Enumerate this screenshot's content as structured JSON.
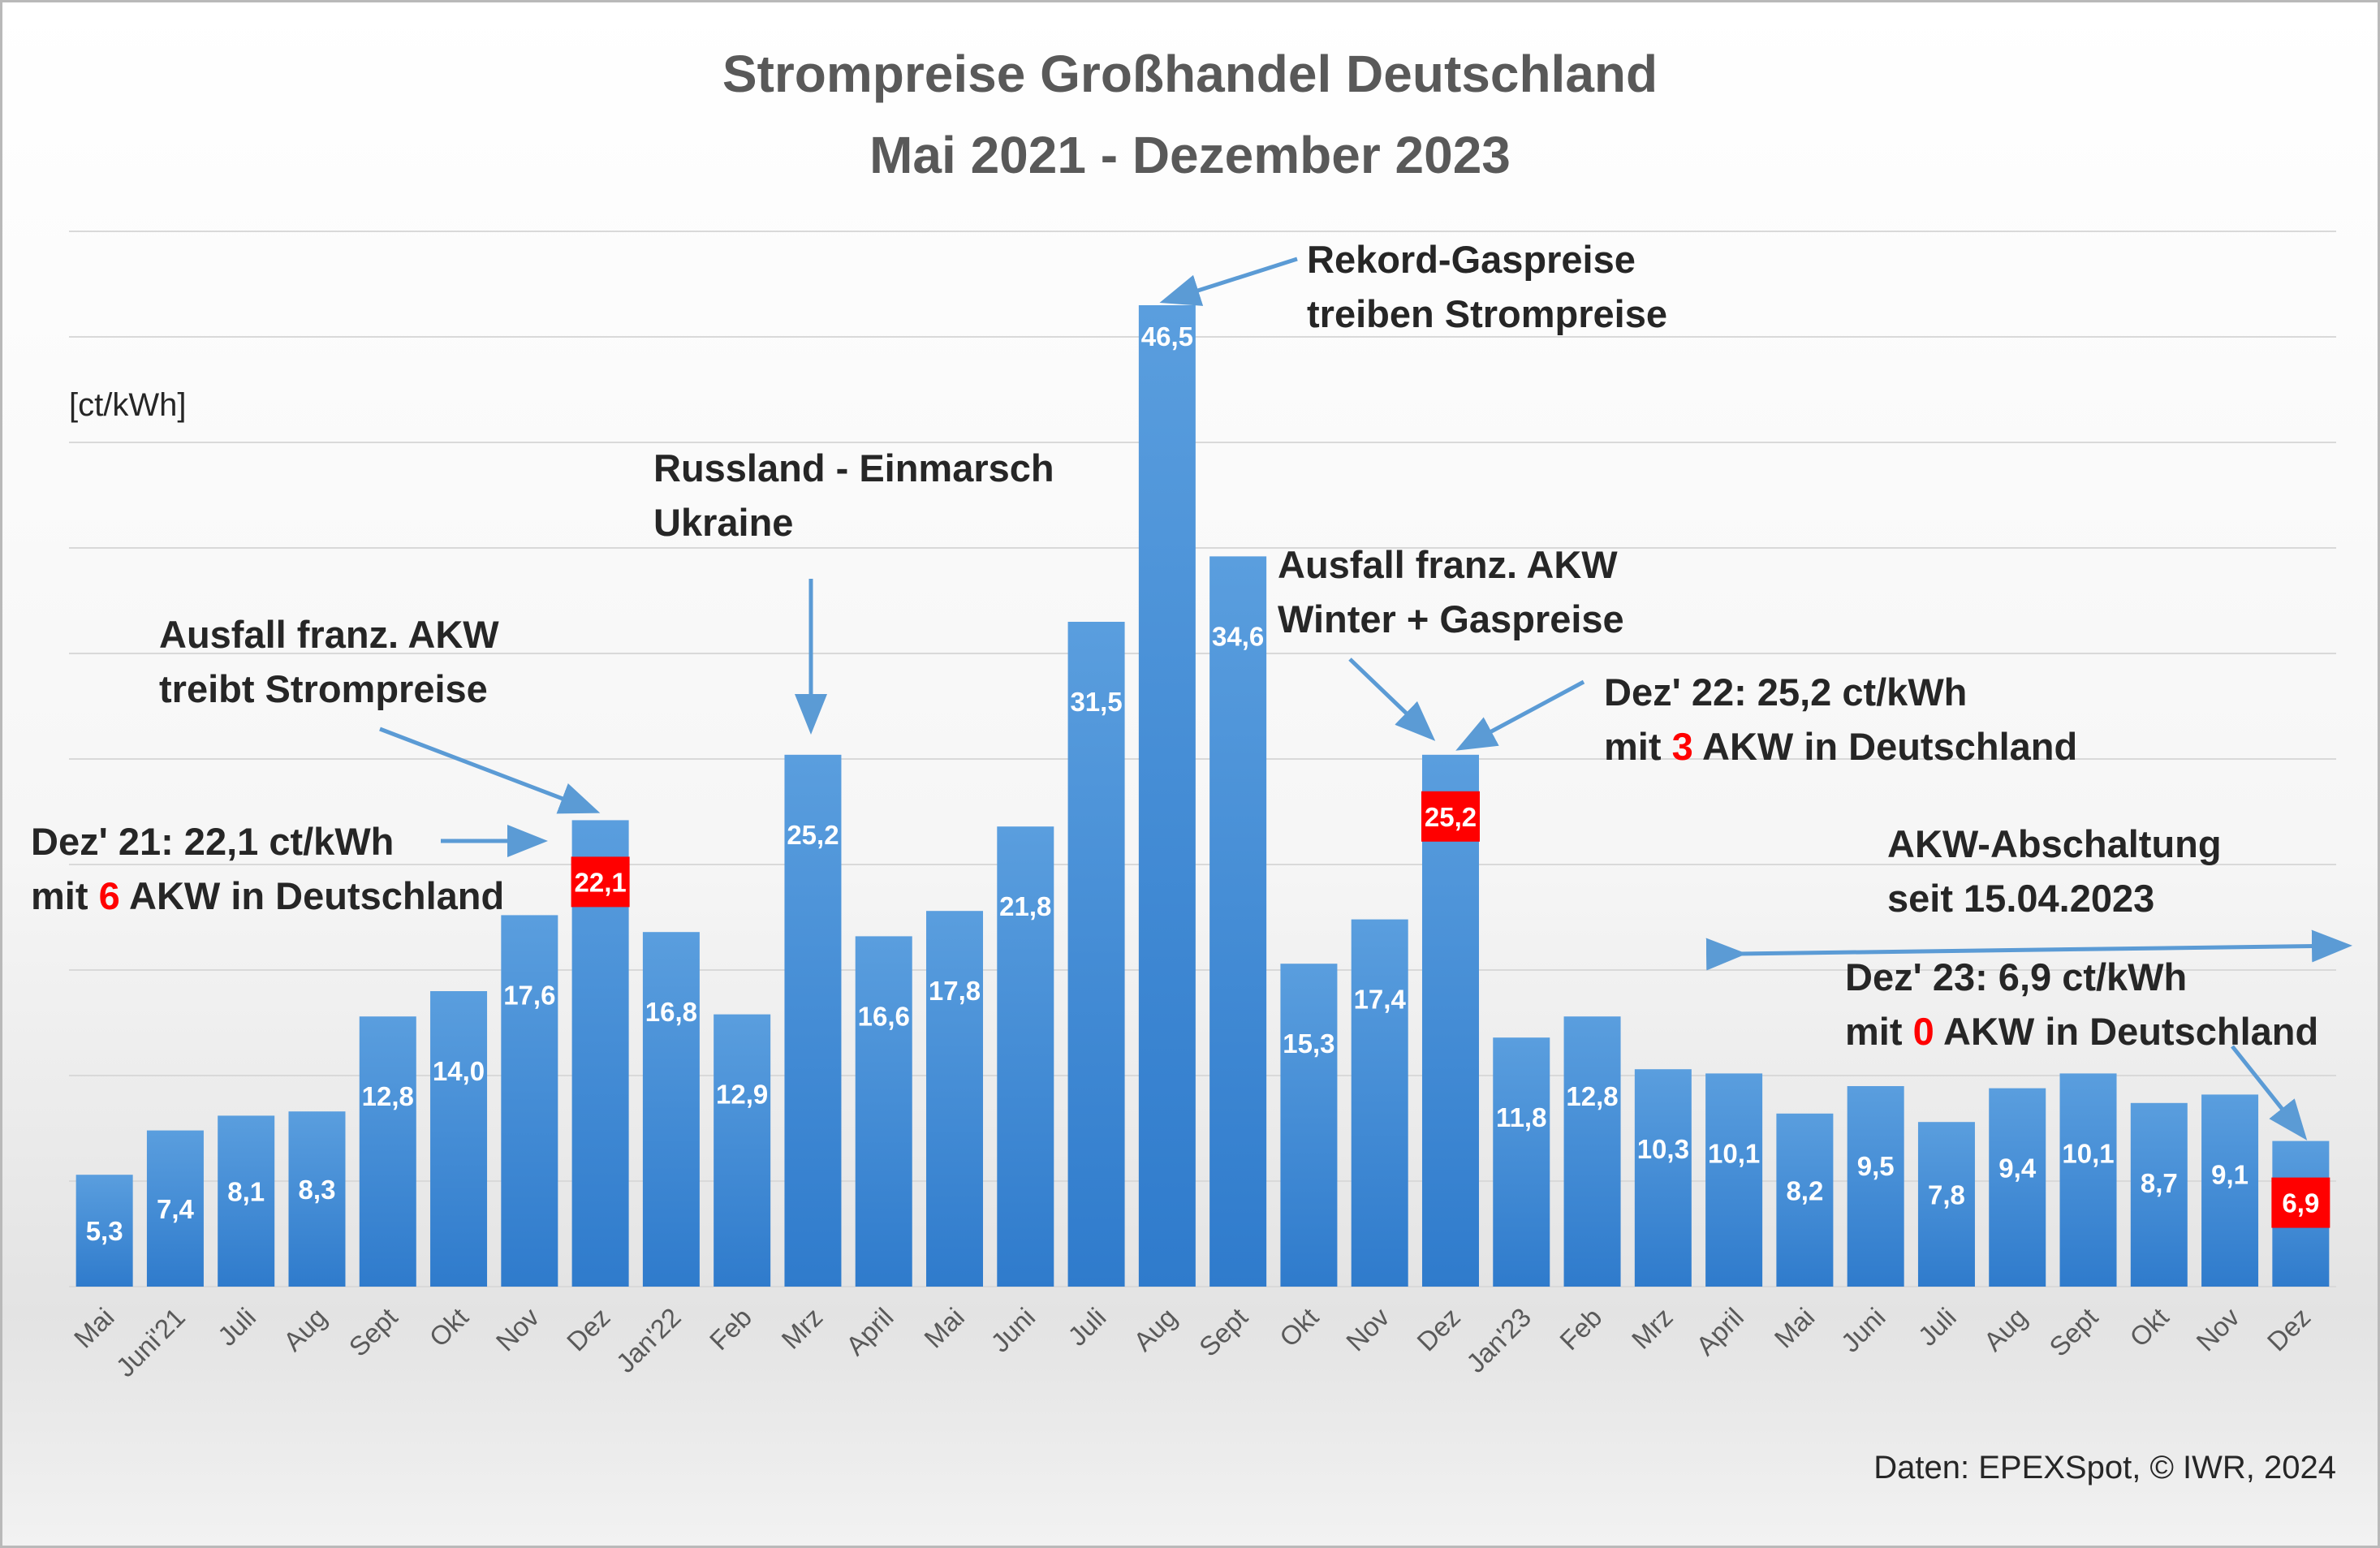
{
  "chart_data": {
    "type": "bar",
    "title": "Strompreise Großhandel Deutschland",
    "subtitle": "Mai 2021 - Dezember 2023",
    "ylabel": "[ct/kWh]",
    "ylim": [
      0,
      52
    ],
    "grid": true,
    "bar_color": "#3a87d6",
    "highlight_color": "#ff0000",
    "categories": [
      "Mai",
      "Juni'21",
      "Juli",
      "Aug",
      "Sept",
      "Okt",
      "Nov",
      "Dez",
      "Jan'22",
      "Feb",
      "Mrz",
      "April",
      "Mai",
      "Juni",
      "Juli",
      "Aug",
      "Sept",
      "Okt",
      "Nov",
      "Dez",
      "Jan'23",
      "Feb",
      "Mrz",
      "April",
      "Mai",
      "Juni",
      "Juli",
      "Aug",
      "Sept",
      "Okt",
      "Nov",
      "Dez"
    ],
    "values": [
      5.3,
      7.4,
      8.1,
      8.3,
      12.8,
      14.0,
      17.6,
      22.1,
      16.8,
      12.9,
      25.2,
      16.6,
      17.8,
      21.8,
      31.5,
      46.5,
      34.6,
      15.3,
      17.4,
      25.2,
      11.8,
      12.8,
      10.3,
      10.1,
      8.2,
      9.5,
      7.8,
      9.4,
      10.1,
      8.7,
      9.1,
      6.9
    ],
    "value_labels": [
      "5,3",
      "7,4",
      "8,1",
      "8,3",
      "12,8",
      "14,0",
      "17,6",
      "22,1",
      "16,8",
      "12,9",
      "25,2",
      "16,6",
      "17,8",
      "21,8",
      "31,5",
      "46,5",
      "34,6",
      "15,3",
      "17,4",
      "25,2",
      "11,8",
      "12,8",
      "10,3",
      "10,1",
      "8,2",
      "9,5",
      "7,8",
      "9,4",
      "10,1",
      "8,7",
      "9,1",
      "6,9"
    ],
    "highlighted": [
      7,
      19,
      31
    ],
    "annotations": {
      "akw_dez21_cause": [
        "Ausfall franz. AKW",
        "treibt Strompreise"
      ],
      "dez21": {
        "line1": "Dez' 21: 22,1 ct/kWh",
        "line2_pre": "mit ",
        "line2_num": "6",
        "line2_post": " AKW in Deutschland"
      },
      "russland": [
        "Russland - Einmarsch",
        "Ukraine"
      ],
      "rekord_gas": [
        "Rekord-Gaspreise",
        "treiben Strompreise"
      ],
      "akw_winter": [
        "Ausfall franz. AKW",
        "Winter + Gaspreise"
      ],
      "dez22": {
        "line1": "Dez' 22: 25,2 ct/kWh",
        "line2_pre": "mit ",
        "line2_num": "3",
        "line2_post": " AKW in Deutschland"
      },
      "abschaltung": [
        "AKW-Abschaltung",
        "seit 15.04.2023"
      ],
      "dez23": {
        "line1": "Dez' 23: 6,9 ct/kWh",
        "line2_pre": "mit ",
        "line2_num": "0",
        "line2_post": " AKW in Deutschland"
      }
    }
  },
  "source": "Daten: EPEXSpot, © IWR, 2024"
}
